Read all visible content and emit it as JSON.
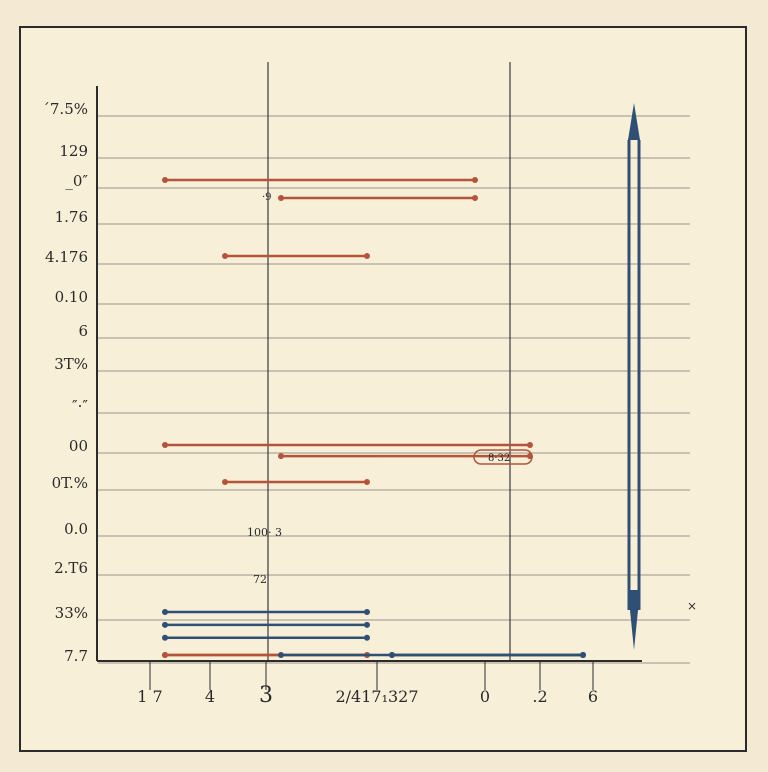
{
  "colors": {
    "background": "#f4ead3",
    "plot_background": "#f8efd9",
    "frame": "#2b2b2b",
    "grid": "#9a958a",
    "red_series": "#b5543a",
    "blue_series": "#2f4f74"
  },
  "chart_data": {
    "type": "line",
    "title": "",
    "xlabel": "",
    "ylabel": "",
    "grid": true,
    "ytick_labels": [
      "´7.5%",
      "129",
      "_0″",
      "1.76",
      "4.176",
      "0.10",
      "6",
      "3T%",
      "″·″",
      "00",
      "0T.%",
      "0.0",
      "2.T6",
      "33%",
      "7.7"
    ],
    "xtick_labels": [
      "1 7",
      "4",
      "3",
      "2/417₁327",
      "0",
      ".2",
      "6"
    ],
    "annotations": [
      "·9",
      "8·32",
      "100· 3",
      "72",
      "×"
    ],
    "series": [
      {
        "color": "red",
        "segments": [
          {
            "row": 2,
            "x_start": "1 7",
            "x_end": "0"
          },
          {
            "row": 2.5,
            "x_start": "3",
            "x_end": "0"
          },
          {
            "row": 4,
            "x_start": "4",
            "x_end": "2/417₁327"
          }
        ]
      },
      {
        "color": "red",
        "segments": [
          {
            "row": 9,
            "x_start": "1 7",
            "x_end": ".2"
          },
          {
            "row": 9.3,
            "x_start": "3",
            "x_end": ".2"
          },
          {
            "row": 10,
            "x_start": "4",
            "x_end": "2/417₁327"
          }
        ]
      },
      {
        "color": "red",
        "segments": [
          {
            "row": 14.5,
            "x_start": "1 7",
            "x_end": "2/417₁327"
          },
          {
            "row": 14.8,
            "x_start": "1 7",
            "x_end": "2/417₁327"
          }
        ]
      },
      {
        "color": "blue",
        "segments": [
          {
            "row": 13,
            "x_start": "1 7",
            "x_end": "2/417₁327"
          },
          {
            "row": 13.3,
            "x_start": "1 7",
            "x_end": "2/417₁327"
          },
          {
            "row": 13.6,
            "x_start": "1 7",
            "x_end": "2/417₁327"
          }
        ]
      },
      {
        "color": "blue",
        "segments": [
          {
            "row": 15.5,
            "x_start": "3",
            "x_end": "6"
          },
          {
            "row": 15.8,
            "x_start": "2/417₁327",
            "x_end": "6"
          },
          {
            "row": 16.1,
            "x_start": "2/417₁327",
            "x_end": "6"
          }
        ]
      }
    ]
  }
}
